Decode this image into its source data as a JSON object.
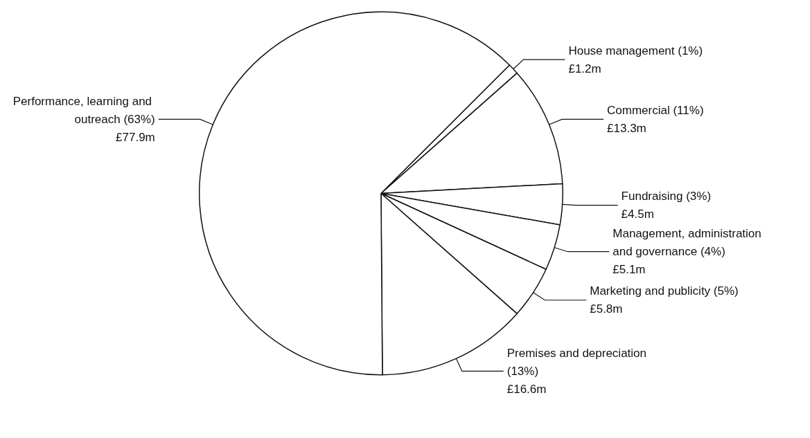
{
  "chart_data": {
    "type": "pie",
    "categories": [
      "House management (1%)",
      "Commercial (11%)",
      "Fundraising (3%)",
      "Management, administration and governance (4%)",
      "Marketing and publicity (5%)",
      "Premises and depreciation (13%)",
      "Performance, learning and outreach (63%)"
    ],
    "values": [
      1.2,
      13.3,
      4.5,
      5.1,
      5.8,
      16.6,
      77.9
    ],
    "value_labels": [
      "£1.2m",
      "£13.3m",
      "£4.5m",
      "£5.1m",
      "£5.8m",
      "£16.6m",
      "£77.9m"
    ],
    "colors": [
      "#ffffff",
      "#ffffff",
      "#ffffff",
      "#ffffff",
      "#ffffff",
      "#ffffff",
      "#ffffff"
    ]
  }
}
